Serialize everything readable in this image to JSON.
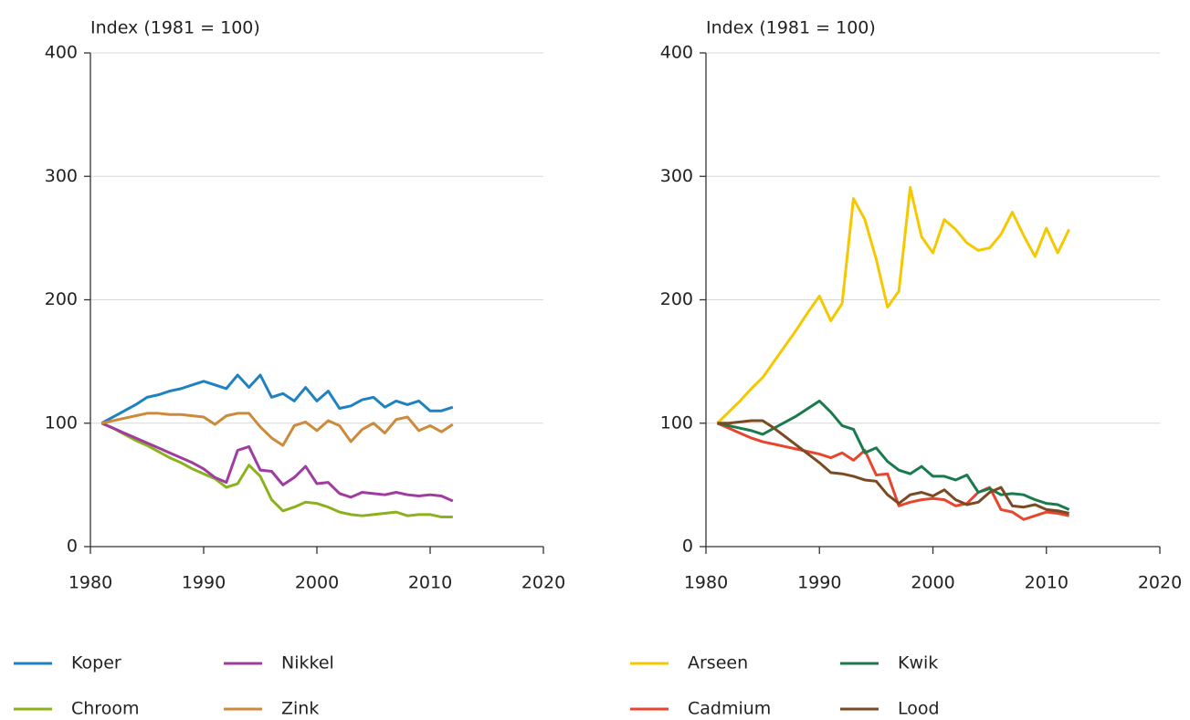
{
  "chart_data": [
    {
      "type": "line",
      "y_label": "Index (1981 = 100)",
      "x": [
        1981,
        1982,
        1983,
        1984,
        1985,
        1986,
        1987,
        1988,
        1989,
        1990,
        1991,
        1992,
        1993,
        1994,
        1995,
        1996,
        1997,
        1998,
        1999,
        2000,
        2001,
        2002,
        2003,
        2004,
        2005,
        2006,
        2007,
        2008,
        2009,
        2010,
        2011,
        2012
      ],
      "xlim": [
        1980,
        2020
      ],
      "xticks": [
        1980,
        1990,
        2000,
        2010,
        2020
      ],
      "ylim": [
        0,
        400
      ],
      "yticks": [
        0,
        100,
        200,
        300,
        400
      ],
      "grid": true,
      "series": [
        {
          "name": "Koper",
          "color": "#1f82c0",
          "values": [
            100,
            105,
            110,
            115,
            121,
            123,
            126,
            128,
            131,
            134,
            131,
            128,
            139,
            129,
            139,
            121,
            124,
            118,
            129,
            118,
            126,
            112,
            114,
            119,
            121,
            113,
            118,
            115,
            118,
            110,
            110,
            113
          ]
        },
        {
          "name": "Chroom",
          "color": "#8bb21e",
          "values": [
            100,
            96,
            91,
            86,
            82,
            77,
            72,
            68,
            63,
            59,
            55,
            48,
            51,
            66,
            57,
            38,
            29,
            32,
            36,
            35,
            32,
            28,
            26,
            25,
            26,
            27,
            28,
            25,
            26,
            26,
            24,
            24
          ]
        },
        {
          "name": "Nikkel",
          "color": "#a03ca0",
          "values": [
            100,
            96,
            92,
            88,
            84,
            80,
            76,
            72,
            68,
            63,
            56,
            52,
            78,
            81,
            62,
            61,
            50,
            56,
            65,
            51,
            52,
            43,
            40,
            44,
            43,
            42,
            44,
            42,
            41,
            42,
            41,
            37
          ]
        },
        {
          "name": "Zink",
          "color": "#cd8a3a",
          "values": [
            100,
            102,
            104,
            106,
            108,
            108,
            107,
            107,
            106,
            105,
            99,
            106,
            108,
            108,
            97,
            88,
            82,
            98,
            101,
            94,
            102,
            98,
            85,
            95,
            100,
            92,
            103,
            105,
            94,
            98,
            93,
            99
          ]
        }
      ]
    },
    {
      "type": "line",
      "y_label": "Index (1981 = 100)",
      "x": [
        1981,
        1982,
        1983,
        1984,
        1985,
        1986,
        1987,
        1988,
        1989,
        1990,
        1991,
        1992,
        1993,
        1994,
        1995,
        1996,
        1997,
        1998,
        1999,
        2000,
        2001,
        2002,
        2003,
        2004,
        2005,
        2006,
        2007,
        2008,
        2009,
        2010,
        2011,
        2012
      ],
      "xlim": [
        1980,
        2020
      ],
      "xticks": [
        1980,
        1990,
        2000,
        2010,
        2020
      ],
      "ylim": [
        0,
        400
      ],
      "yticks": [
        0,
        100,
        200,
        300,
        400
      ],
      "grid": true,
      "series": [
        {
          "name": "Arseen",
          "color": "#f5c800",
          "values": [
            100,
            109,
            118,
            128,
            137,
            150,
            163,
            176,
            190,
            203,
            183,
            197,
            282,
            265,
            233,
            194,
            207,
            291,
            251,
            238,
            265,
            257,
            246,
            240,
            242,
            253,
            271,
            252,
            235,
            258,
            238,
            257
          ]
        },
        {
          "name": "Cadmium",
          "color": "#e8452e",
          "values": [
            100,
            96,
            92,
            88,
            85,
            83,
            81,
            79,
            77,
            75,
            72,
            76,
            70,
            78,
            58,
            59,
            33,
            36,
            38,
            39,
            38,
            33,
            35,
            44,
            48,
            30,
            28,
            22,
            25,
            28,
            27,
            25
          ]
        },
        {
          "name": "Kwik",
          "color": "#1a7a4d",
          "values": [
            100,
            98,
            96,
            94,
            91,
            96,
            101,
            106,
            112,
            118,
            109,
            98,
            95,
            76,
            80,
            69,
            62,
            59,
            65,
            57,
            57,
            54,
            58,
            44,
            47,
            42,
            43,
            42,
            38,
            35,
            34,
            30
          ]
        },
        {
          "name": "Lood",
          "color": "#7a4a23",
          "values": [
            100,
            100,
            101,
            102,
            102,
            96,
            89,
            82,
            75,
            68,
            60,
            59,
            57,
            54,
            53,
            42,
            35,
            42,
            44,
            41,
            46,
            38,
            34,
            36,
            44,
            48,
            33,
            32,
            34,
            30,
            29,
            27
          ]
        }
      ]
    }
  ]
}
